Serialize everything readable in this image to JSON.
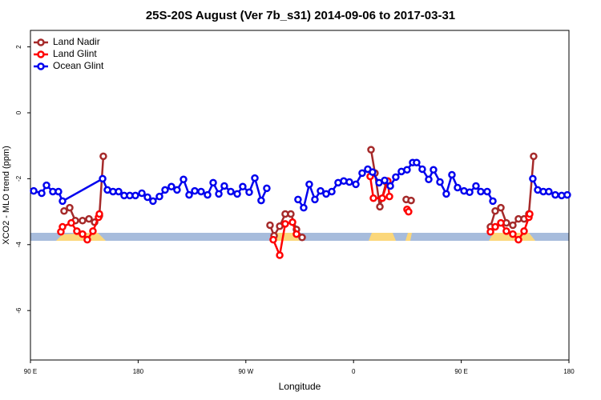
{
  "chart_data": {
    "type": "line",
    "title": "25S-20S August (Ver 7b_s31)   2014-09-06 to 2017-03-31",
    "x_label": "Longitude",
    "y_label": "XCO2 - MLO trend (ppm)",
    "xlim": [
      90,
      540
    ],
    "ylim": [
      -7.5,
      2.5
    ],
    "xticks": [
      {
        "value": 90,
        "label": "90 E"
      },
      {
        "value": 180,
        "label": "180"
      },
      {
        "value": 270,
        "label": "90 W"
      },
      {
        "value": 360,
        "label": "0"
      },
      {
        "value": 450,
        "label": "90 E"
      },
      {
        "value": 540,
        "label": "180"
      }
    ],
    "yticks": [
      -6,
      -4,
      -2,
      0,
      2
    ],
    "legend": "top-left",
    "series": [
      {
        "name": "Land Nadir",
        "color": "#a52a2a",
        "x": [
          118.1,
          122.8,
          127.5,
          133.5,
          138.9,
          143.6,
          147.6,
          150.9,
          null,
          290.2,
          293.6,
          298.3,
          302.9,
          307.6,
          312.3,
          317.0,
          null,
          374.6,
          377.9,
          382.0,
          387.3,
          null,
          404.0,
          408.1,
          null,
          474.4,
          478.4,
          483.1,
          487.7,
          493.1,
          497.8,
          502.5,
          506.5,
          510.5
        ],
        "values": [
          -2.98,
          -2.88,
          -3.27,
          -3.27,
          -3.22,
          -3.32,
          -3.12,
          -1.32,
          null,
          -3.41,
          -3.73,
          -3.44,
          -3.07,
          -3.07,
          -3.54,
          -3.78,
          null,
          -1.12,
          -1.83,
          -2.85,
          -2.1,
          null,
          -2.63,
          -2.66,
          null,
          -3.46,
          -2.98,
          -2.88,
          -3.34,
          -3.41,
          -3.22,
          -3.22,
          -3.07,
          -1.32
        ]
      },
      {
        "name": "Land Glint",
        "color": "#ff0000",
        "x": [
          115.4,
          116.8,
          124.1,
          128.8,
          133.5,
          137.5,
          142.2,
          146.9,
          147.6,
          null,
          292.9,
          298.3,
          302.9,
          309.0,
          312.3,
          null,
          373.9,
          376.6,
          384.0,
          388.6,
          390.0,
          null,
          404.7,
          406.0,
          null,
          474.4,
          478.4,
          483.1,
          487.7,
          493.1,
          497.8,
          502.5,
          506.5,
          507.2
        ],
        "values": [
          -3.61,
          -3.46,
          -3.34,
          -3.59,
          -3.68,
          -3.85,
          -3.59,
          -3.17,
          -3.07,
          null,
          -3.85,
          -4.32,
          -3.37,
          -3.32,
          -3.68,
          null,
          -1.93,
          -2.59,
          -2.59,
          -2.07,
          -2.54,
          null,
          -2.93,
          -3.0,
          null,
          -3.61,
          -3.46,
          -3.34,
          -3.59,
          -3.68,
          -3.85,
          -3.59,
          -3.17,
          -3.07
        ]
      },
      {
        "name": "Ocean Glint",
        "color": "#0000ee",
        "x": [
          92.7,
          99.4,
          103.4,
          108.7,
          113.4,
          116.8,
          150.3,
          154.3,
          159.0,
          163.7,
          168.3,
          173.0,
          177.7,
          183.1,
          187.8,
          192.4,
          197.8,
          202.5,
          207.8,
          212.5,
          217.9,
          222.6,
          227.3,
          232.6,
          238.0,
          242.7,
          247.4,
          252.0,
          257.4,
          262.8,
          267.4,
          272.8,
          277.5,
          282.8,
          287.5,
          null,
          313.6,
          318.3,
          323.0,
          327.7,
          332.4,
          337.1,
          341.8,
          347.1,
          351.8,
          356.5,
          361.9,
          367.2,
          371.9,
          375.9,
          381.3,
          386.0,
          390.7,
          395.3,
          400.0,
          404.7,
          409.4,
          412.7,
          417.4,
          422.8,
          426.8,
          432.2,
          437.5,
          442.2,
          446.9,
          452.3,
          457.0,
          462.3,
          466.3,
          471.7,
          476.4,
          null,
          509.8,
          513.9,
          518.6,
          523.2,
          528.6,
          533.9,
          538.6
        ],
        "values": [
          -2.37,
          -2.44,
          -2.2,
          -2.39,
          -2.39,
          -2.68,
          -2.0,
          -2.34,
          -2.39,
          -2.39,
          -2.51,
          -2.51,
          -2.51,
          -2.44,
          -2.56,
          -2.68,
          -2.54,
          -2.34,
          -2.24,
          -2.34,
          -2.02,
          -2.49,
          -2.37,
          -2.39,
          -2.49,
          -2.12,
          -2.46,
          -2.22,
          -2.39,
          -2.46,
          -2.24,
          -2.41,
          -1.98,
          -2.66,
          -2.29,
          null,
          -2.63,
          -2.88,
          -2.17,
          -2.63,
          -2.37,
          -2.46,
          -2.39,
          -2.12,
          -2.07,
          -2.1,
          -2.17,
          -1.83,
          -1.71,
          -1.8,
          -2.12,
          -2.05,
          -2.22,
          -1.95,
          -1.78,
          -1.73,
          -1.51,
          -1.51,
          -1.71,
          -2.02,
          -1.73,
          -2.1,
          -2.46,
          -1.88,
          -2.27,
          -2.37,
          -2.41,
          -2.22,
          -2.39,
          -2.39,
          -2.68,
          null,
          -2.0,
          -2.34,
          -2.39,
          -2.39,
          -2.49,
          -2.51,
          -2.49
        ]
      }
    ]
  }
}
